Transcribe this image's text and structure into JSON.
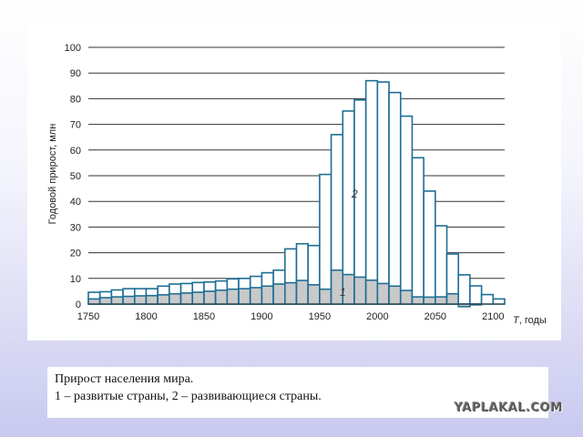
{
  "chart_data": {
    "type": "bar",
    "ylabel": "Годовой прирост, млн",
    "xlabel_italic": "T",
    "xlabel_rest": ", годы",
    "ylim": [
      0,
      100
    ],
    "xlim": [
      1750,
      2110
    ],
    "yticks": [
      0,
      10,
      20,
      30,
      40,
      50,
      60,
      70,
      80,
      90,
      100
    ],
    "xticks": [
      1750,
      1800,
      1850,
      1900,
      1950,
      2000,
      2050,
      2100
    ],
    "grid": true,
    "bin_width_years": 10,
    "series_label_1": "1",
    "series_label_2": "2",
    "x": [
      1750,
      1760,
      1770,
      1780,
      1790,
      1800,
      1810,
      1820,
      1830,
      1840,
      1850,
      1860,
      1870,
      1880,
      1890,
      1900,
      1910,
      1920,
      1930,
      1940,
      1950,
      1960,
      1970,
      1980,
      1990,
      2000,
      2010,
      2020,
      2030,
      2040,
      2050,
      2060,
      2070,
      2080,
      2090,
      2100
    ],
    "series": [
      {
        "name": "1",
        "color": "#c9c9c9",
        "values": [
          2,
          2.5,
          2.8,
          3,
          3.2,
          3.3,
          3.6,
          4,
          4.3,
          4.6,
          5,
          5.4,
          5.8,
          6,
          6.4,
          7,
          7.8,
          8.3,
          9.2,
          7.5,
          5.8,
          13.2,
          11.5,
          10.5,
          9.3,
          8,
          7,
          5.3,
          2.8,
          2.7,
          2.8,
          4,
          -1,
          -0.3,
          0,
          0
        ]
      },
      {
        "name": "2",
        "color": "#1e6e96",
        "values": [
          4.6,
          4.8,
          5.5,
          6,
          6,
          6,
          7,
          7.8,
          8,
          8.4,
          8.6,
          9,
          9.8,
          10,
          10.8,
          12.2,
          13.2,
          21.5,
          23.5,
          22.8,
          50.5,
          66,
          75.2,
          79.5,
          87,
          86.5,
          82.4,
          73.2,
          57,
          44,
          30.5,
          19.5,
          11.4,
          7.1,
          3.7,
          2
        ]
      }
    ]
  },
  "caption": {
    "line1": "Прирост населения мира.",
    "line2": "1 – развитые страны, 2 – развивающиеся страны."
  },
  "watermark": "YAPLAKAL.COM"
}
